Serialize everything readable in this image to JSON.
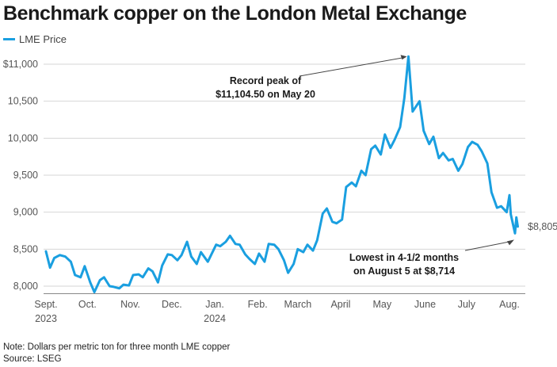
{
  "chart_data": {
    "type": "line",
    "title": "Benchmark copper on the London Metal Exchange",
    "legend": {
      "placement": "top-left",
      "entries": [
        "LME Price"
      ]
    },
    "ylim": [
      7900,
      11150
    ],
    "xlim": [
      "2023-09-01",
      "2024-08-08"
    ],
    "grid": {
      "horizontal": true,
      "vertical": false
    },
    "y_ticks": [
      {
        "value": 8000,
        "label": "8,000"
      },
      {
        "value": 8500,
        "label": "8,500"
      },
      {
        "value": 9000,
        "label": "9,000"
      },
      {
        "value": 9500,
        "label": "9,500"
      },
      {
        "value": 10000,
        "label": "10,000"
      },
      {
        "value": 10500,
        "label": "10,500"
      },
      {
        "value": 11000,
        "label": "$11,000"
      }
    ],
    "x_ticks": [
      {
        "date": "2023-09-01",
        "label": "Sept.",
        "sublabel": "2023"
      },
      {
        "date": "2023-10-01",
        "label": "Oct.",
        "sublabel": ""
      },
      {
        "date": "2023-11-01",
        "label": "Nov.",
        "sublabel": ""
      },
      {
        "date": "2023-12-01",
        "label": "Dec.",
        "sublabel": ""
      },
      {
        "date": "2024-01-01",
        "label": "Jan.",
        "sublabel": "2024"
      },
      {
        "date": "2024-02-01",
        "label": "Feb.",
        "sublabel": ""
      },
      {
        "date": "2024-03-01",
        "label": "March",
        "sublabel": ""
      },
      {
        "date": "2024-04-01",
        "label": "April",
        "sublabel": ""
      },
      {
        "date": "2024-05-01",
        "label": "May",
        "sublabel": ""
      },
      {
        "date": "2024-06-01",
        "label": "June",
        "sublabel": ""
      },
      {
        "date": "2024-07-01",
        "label": "July",
        "sublabel": ""
      },
      {
        "date": "2024-08-01",
        "label": "Aug.",
        "sublabel": ""
      }
    ],
    "series": [
      {
        "name": "LME Price",
        "color": "#1a9fe0",
        "points": [
          [
            "2023-09-01",
            8470
          ],
          [
            "2023-09-04",
            8250
          ],
          [
            "2023-09-07",
            8380
          ],
          [
            "2023-09-11",
            8420
          ],
          [
            "2023-09-15",
            8400
          ],
          [
            "2023-09-19",
            8330
          ],
          [
            "2023-09-22",
            8150
          ],
          [
            "2023-09-26",
            8120
          ],
          [
            "2023-09-29",
            8270
          ],
          [
            "2023-10-03",
            8050
          ],
          [
            "2023-10-06",
            7920
          ],
          [
            "2023-10-10",
            8080
          ],
          [
            "2023-10-13",
            8120
          ],
          [
            "2023-10-17",
            8000
          ],
          [
            "2023-10-20",
            7990
          ],
          [
            "2023-10-24",
            7970
          ],
          [
            "2023-10-27",
            8020
          ],
          [
            "2023-10-31",
            8010
          ],
          [
            "2023-11-03",
            8150
          ],
          [
            "2023-11-07",
            8160
          ],
          [
            "2023-11-10",
            8120
          ],
          [
            "2023-11-14",
            8240
          ],
          [
            "2023-11-17",
            8200
          ],
          [
            "2023-11-21",
            8050
          ],
          [
            "2023-11-24",
            8280
          ],
          [
            "2023-11-28",
            8430
          ],
          [
            "2023-12-01",
            8420
          ],
          [
            "2023-12-05",
            8350
          ],
          [
            "2023-12-08",
            8420
          ],
          [
            "2023-12-12",
            8600
          ],
          [
            "2023-12-15",
            8400
          ],
          [
            "2023-12-19",
            8300
          ],
          [
            "2023-12-22",
            8460
          ],
          [
            "2023-12-27",
            8330
          ],
          [
            "2024-01-02",
            8560
          ],
          [
            "2024-01-05",
            8540
          ],
          [
            "2024-01-09",
            8600
          ],
          [
            "2024-01-12",
            8680
          ],
          [
            "2024-01-16",
            8570
          ],
          [
            "2024-01-19",
            8560
          ],
          [
            "2024-01-23",
            8430
          ],
          [
            "2024-01-26",
            8370
          ],
          [
            "2024-01-30",
            8300
          ],
          [
            "2024-02-02",
            8440
          ],
          [
            "2024-02-06",
            8330
          ],
          [
            "2024-02-09",
            8570
          ],
          [
            "2024-02-13",
            8560
          ],
          [
            "2024-02-16",
            8500
          ],
          [
            "2024-02-20",
            8350
          ],
          [
            "2024-02-23",
            8180
          ],
          [
            "2024-02-27",
            8300
          ],
          [
            "2024-03-01",
            8500
          ],
          [
            "2024-03-05",
            8460
          ],
          [
            "2024-03-08",
            8560
          ],
          [
            "2024-03-12",
            8480
          ],
          [
            "2024-03-15",
            8620
          ],
          [
            "2024-03-19",
            8980
          ],
          [
            "2024-03-22",
            9050
          ],
          [
            "2024-03-26",
            8870
          ],
          [
            "2024-03-29",
            8850
          ],
          [
            "2024-04-02",
            8900
          ],
          [
            "2024-04-05",
            9340
          ],
          [
            "2024-04-09",
            9400
          ],
          [
            "2024-04-12",
            9350
          ],
          [
            "2024-04-16",
            9560
          ],
          [
            "2024-04-19",
            9500
          ],
          [
            "2024-04-23",
            9850
          ],
          [
            "2024-04-26",
            9900
          ],
          [
            "2024-04-30",
            9780
          ],
          [
            "2024-05-03",
            10050
          ],
          [
            "2024-05-07",
            9870
          ],
          [
            "2024-05-10",
            9980
          ],
          [
            "2024-05-14",
            10150
          ],
          [
            "2024-05-17",
            10540
          ],
          [
            "2024-05-20",
            11104.5
          ],
          [
            "2024-05-23",
            10360
          ],
          [
            "2024-05-28",
            10500
          ],
          [
            "2024-05-31",
            10100
          ],
          [
            "2024-06-04",
            9920
          ],
          [
            "2024-06-07",
            10020
          ],
          [
            "2024-06-11",
            9730
          ],
          [
            "2024-06-14",
            9800
          ],
          [
            "2024-06-18",
            9700
          ],
          [
            "2024-06-21",
            9720
          ],
          [
            "2024-06-25",
            9560
          ],
          [
            "2024-06-28",
            9650
          ],
          [
            "2024-07-02",
            9880
          ],
          [
            "2024-07-05",
            9950
          ],
          [
            "2024-07-09",
            9910
          ],
          [
            "2024-07-12",
            9820
          ],
          [
            "2024-07-16",
            9660
          ],
          [
            "2024-07-19",
            9270
          ],
          [
            "2024-07-23",
            9060
          ],
          [
            "2024-07-26",
            9080
          ],
          [
            "2024-07-30",
            9000
          ],
          [
            "2024-08-01",
            9230
          ],
          [
            "2024-08-02",
            8970
          ],
          [
            "2024-08-05",
            8714
          ],
          [
            "2024-08-06",
            8930
          ],
          [
            "2024-08-07",
            8805
          ]
        ]
      }
    ],
    "end_label": "$8,805",
    "annotations": [
      {
        "lines": [
          "Record peak of",
          "$11,104.50 on May 20"
        ],
        "target": [
          "2024-05-20",
          11104.5
        ]
      },
      {
        "lines": [
          "Lowest in 4-1/2 months",
          "on August 5 at $8,714"
        ],
        "target": [
          "2024-08-05",
          8714
        ]
      }
    ]
  },
  "notes": {
    "note": "Note: Dollars per metric ton for three month LME copper",
    "source": "Source: LSEG"
  }
}
